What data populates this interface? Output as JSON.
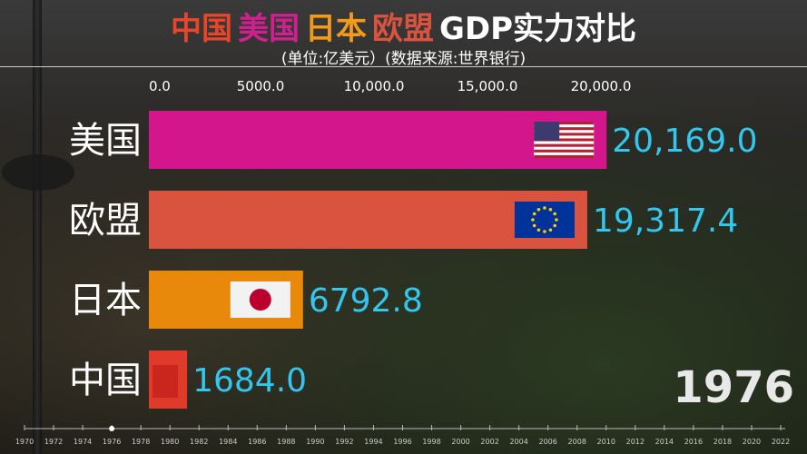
{
  "title": {
    "parts": [
      {
        "text": "中国",
        "color": "#e8452a"
      },
      {
        "text": "美国",
        "color": "#d0208f"
      },
      {
        "text": "日本",
        "color": "#f39a1a"
      },
      {
        "text": "欧盟",
        "color": "#d9533f"
      },
      {
        "text": "GDP实力对比",
        "color": "#ffffff"
      }
    ]
  },
  "subtitle": "(单位:亿美元）(数据来源:世界银行)",
  "chart_data": {
    "type": "bar",
    "orientation": "horizontal",
    "categories": [
      "美国",
      "欧盟",
      "日本",
      "中国"
    ],
    "values": [
      20169.0,
      19317.4,
      6792.8,
      1684.0
    ],
    "value_labels": [
      "20,169.0",
      "19,317.4",
      "6792.8",
      "1684.0"
    ],
    "colors": [
      "#d4168c",
      "#d9533f",
      "#e8890c",
      "#e03a2a"
    ],
    "flags": [
      "us-flag-icon",
      "eu-flag-icon",
      "japan-flag-icon",
      "china-flag-icon"
    ],
    "xlim": [
      0,
      20000
    ],
    "x_ticks": [
      0,
      5000,
      10000,
      15000,
      20000
    ],
    "x_tick_labels": [
      "0.0",
      "5000.0",
      "10,000.0",
      "15,000.0",
      "20,000.0"
    ],
    "axis_position": "top",
    "value_label_color": "#33c7f0",
    "year": "1976"
  },
  "timeline": {
    "years": [
      "1970",
      "1972",
      "1974",
      "1976",
      "1978",
      "1980",
      "1982",
      "1984",
      "1986",
      "1988",
      "1990",
      "1992",
      "1994",
      "1996",
      "1998",
      "2000",
      "2002",
      "2004",
      "2006",
      "2008",
      "2010",
      "2012",
      "2014",
      "2016",
      "2018",
      "2020",
      "2022"
    ],
    "current": "1976"
  }
}
